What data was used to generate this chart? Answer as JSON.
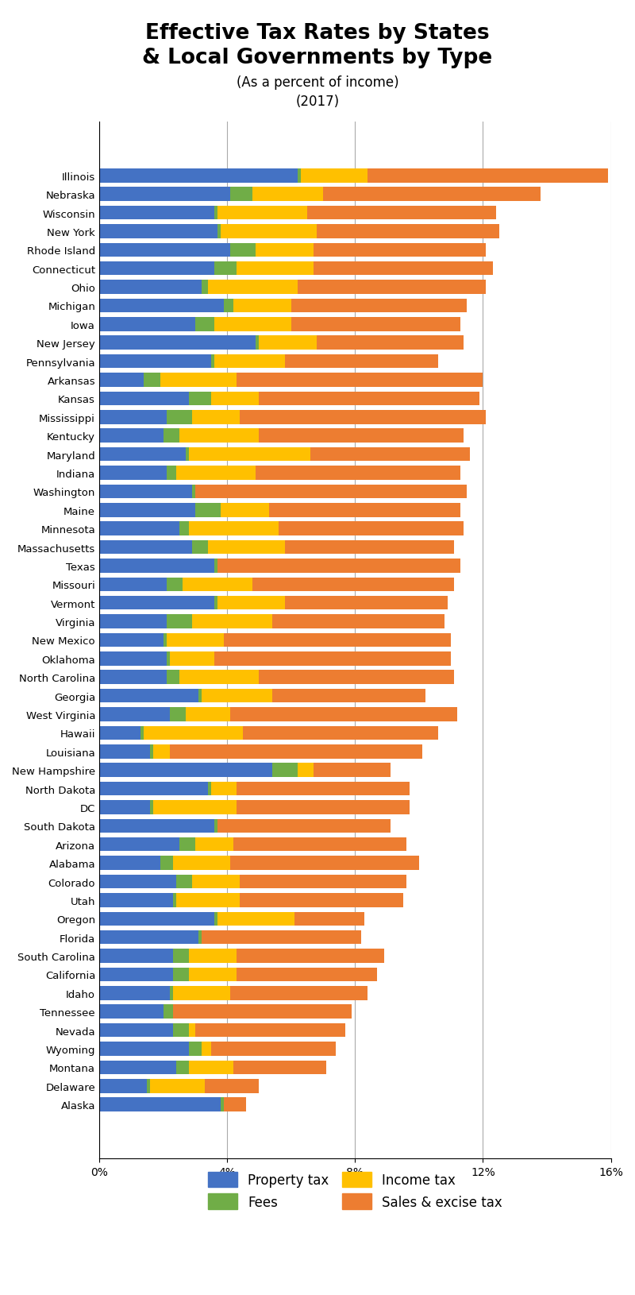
{
  "title_line1": "Effective Tax Rates by States",
  "title_line2": "& Local Governments by Type",
  "subtitle1": "(As a percent of income)",
  "subtitle2": "(2017)",
  "colors": {
    "property": "#4472C4",
    "fees": "#70AD47",
    "income": "#FFC000",
    "sales": "#ED7D31"
  },
  "states": [
    "Illinois",
    "Nebraska",
    "Wisconsin",
    "New York",
    "Rhode Island",
    "Connecticut",
    "Ohio",
    "Michigan",
    "Iowa",
    "New Jersey",
    "Pennsylvania",
    "Arkansas",
    "Kansas",
    "Mississippi",
    "Kentucky",
    "Maryland",
    "Indiana",
    "Washington",
    "Maine",
    "Minnesota",
    "Massachusetts",
    "Texas",
    "Missouri",
    "Vermont",
    "Virginia",
    "New Mexico",
    "Oklahoma",
    "North Carolina",
    "Georgia",
    "West Virginia",
    "Hawaii",
    "Louisiana",
    "New Hampshire",
    "North Dakota",
    "DC",
    "South Dakota",
    "Arizona",
    "Alabama",
    "Colorado",
    "Utah",
    "Oregon",
    "Florida",
    "South Carolina",
    "California",
    "Idaho",
    "Tennessee",
    "Nevada",
    "Wyoming",
    "Montana",
    "Delaware",
    "Alaska"
  ],
  "property": [
    6.2,
    4.1,
    3.6,
    3.7,
    4.1,
    3.6,
    3.2,
    3.9,
    3.0,
    4.9,
    3.5,
    1.4,
    2.8,
    2.1,
    2.0,
    2.7,
    2.1,
    2.9,
    3.0,
    2.5,
    2.9,
    3.6,
    2.1,
    3.6,
    2.1,
    2.0,
    2.1,
    2.1,
    3.1,
    2.2,
    1.3,
    1.6,
    5.4,
    3.4,
    1.6,
    3.6,
    2.5,
    1.9,
    2.4,
    2.3,
    3.6,
    3.1,
    2.3,
    2.3,
    2.2,
    2.0,
    2.3,
    2.8,
    2.4,
    1.5,
    3.8
  ],
  "fees": [
    0.1,
    0.7,
    0.1,
    0.1,
    0.8,
    0.7,
    0.2,
    0.3,
    0.6,
    0.1,
    0.1,
    0.5,
    0.7,
    0.8,
    0.5,
    0.1,
    0.3,
    0.1,
    0.8,
    0.3,
    0.5,
    0.1,
    0.5,
    0.1,
    0.8,
    0.1,
    0.1,
    0.4,
    0.1,
    0.5,
    0.1,
    0.1,
    0.8,
    0.1,
    0.1,
    0.1,
    0.5,
    0.4,
    0.5,
    0.1,
    0.1,
    0.1,
    0.5,
    0.5,
    0.1,
    0.3,
    0.5,
    0.4,
    0.4,
    0.1,
    0.1
  ],
  "income": [
    2.1,
    2.2,
    2.8,
    3.0,
    1.8,
    2.4,
    2.8,
    1.8,
    2.4,
    1.8,
    2.2,
    2.4,
    1.5,
    1.5,
    2.5,
    3.8,
    2.5,
    0.0,
    1.5,
    2.8,
    2.4,
    0.0,
    2.2,
    2.1,
    2.5,
    1.8,
    1.4,
    2.5,
    2.2,
    1.4,
    3.1,
    0.5,
    0.5,
    0.8,
    2.6,
    0.0,
    1.2,
    1.8,
    1.5,
    2.0,
    2.4,
    0.0,
    1.5,
    1.5,
    1.8,
    0.0,
    0.2,
    0.3,
    1.4,
    1.7,
    0.0
  ],
  "sales": [
    7.5,
    6.8,
    5.9,
    5.7,
    5.4,
    5.6,
    5.9,
    5.5,
    5.3,
    4.6,
    4.8,
    7.7,
    6.9,
    7.7,
    6.4,
    5.0,
    6.4,
    8.5,
    6.0,
    5.8,
    5.3,
    7.6,
    6.3,
    5.1,
    5.4,
    7.1,
    7.4,
    6.1,
    4.8,
    7.1,
    6.1,
    7.9,
    2.4,
    5.4,
    5.4,
    5.4,
    5.4,
    5.9,
    5.2,
    5.1,
    2.2,
    5.0,
    4.6,
    4.4,
    4.3,
    5.6,
    4.7,
    3.9,
    2.9,
    1.7,
    0.7
  ],
  "background_color": "#ffffff",
  "figsize": [
    8.0,
    16.31
  ],
  "dpi": 100
}
